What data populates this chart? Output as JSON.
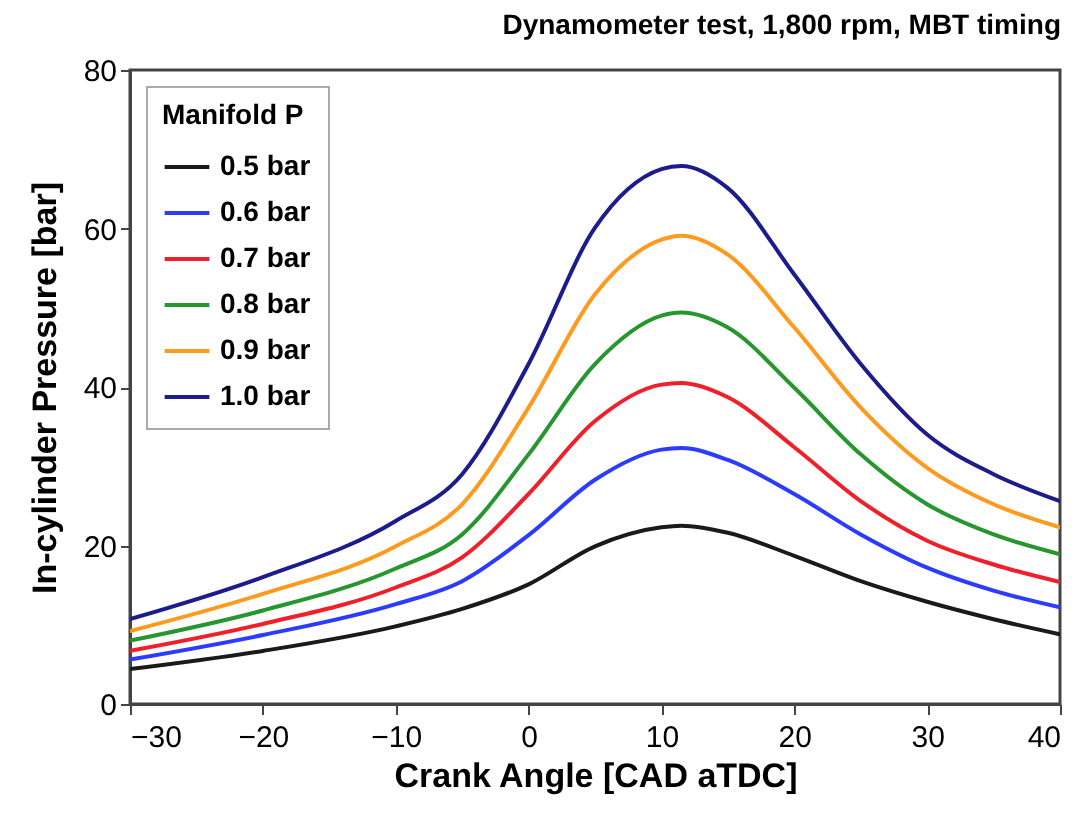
{
  "chart_data": {
    "type": "line",
    "title": "Dynamometer test, 1,800 rpm, MBT timing",
    "xlabel": "Crank Angle [CAD aTDC]",
    "ylabel": "In-cylinder Pressure [bar]",
    "legend_title": "Manifold P",
    "legend": "top left",
    "grid": false,
    "marker": "none",
    "line_style": "solid",
    "xlim": [
      -30,
      40
    ],
    "xticks": [
      -30,
      -20,
      -10,
      0,
      10,
      20,
      30,
      40
    ],
    "ylim": [
      0,
      80
    ],
    "yticks": [
      0,
      20,
      40,
      60,
      80
    ],
    "x": [
      -30,
      -20,
      -10,
      -5,
      0,
      5,
      10,
      11.5,
      15,
      20,
      25,
      30,
      35,
      40
    ],
    "series": [
      {
        "name": "0.5 bar",
        "color": "#1a1a1a",
        "values": [
          4.4,
          6.7,
          9.8,
          12.0,
          15.1,
          19.9,
          22.3,
          22.5,
          21.6,
          18.7,
          15.5,
          12.9,
          10.7,
          8.8
        ]
      },
      {
        "name": "0.6 bar",
        "color": "#2b3bff",
        "values": [
          5.6,
          8.7,
          12.6,
          15.5,
          21.3,
          28.3,
          32.1,
          32.3,
          30.8,
          26.5,
          21.4,
          17.2,
          14.3,
          12.2
        ]
      },
      {
        "name": "0.7 bar",
        "color": "#f0202a",
        "values": [
          6.7,
          10.1,
          14.7,
          18.5,
          26.5,
          35.7,
          40.3,
          40.5,
          38.7,
          32.4,
          25.6,
          20.6,
          17.6,
          15.4
        ]
      },
      {
        "name": "0.8 bar",
        "color": "#26962e",
        "values": [
          8.0,
          11.8,
          17.1,
          21.4,
          31.5,
          42.9,
          49.0,
          49.4,
          47.5,
          39.9,
          31.5,
          25.2,
          21.4,
          18.9
        ]
      },
      {
        "name": "0.9 bar",
        "color": "#ff9a1e",
        "values": [
          9.2,
          13.9,
          19.9,
          25.2,
          37.4,
          51.7,
          58.6,
          59.1,
          56.7,
          47.5,
          37.4,
          29.8,
          25.2,
          22.3
        ]
      },
      {
        "name": "1.0 bar",
        "color": "#1c1c8c",
        "values": [
          10.7,
          16.0,
          23.1,
          29.0,
          42.9,
          60.1,
          67.5,
          67.9,
          65.1,
          54.2,
          42.9,
          34.0,
          29.0,
          25.6
        ]
      }
    ]
  }
}
